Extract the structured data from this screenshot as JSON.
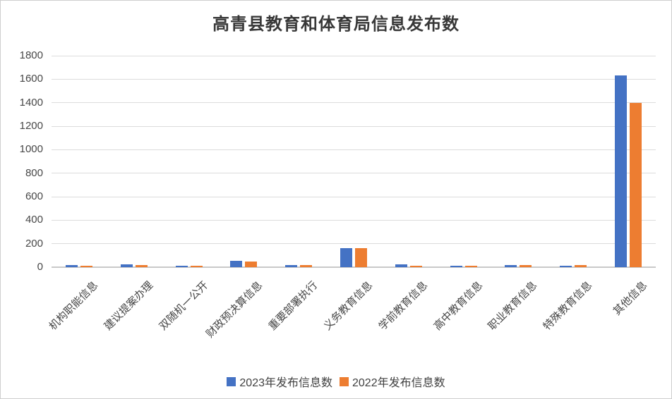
{
  "chart_data": {
    "type": "bar",
    "title": "高青县教育和体育局信息发布数",
    "xlabel": "",
    "ylabel": "",
    "ylim": [
      0,
      1800
    ],
    "ytick_step": 200,
    "grid": true,
    "legend_position": "bottom",
    "categories": [
      "机构职能信息",
      "建议提案办理",
      "双随机一公开",
      "财政预决算信息",
      "重要部署执行",
      "义务教育信息",
      "学前教育信息",
      "高中教育信息",
      "职业教育信息",
      "特殊教育信息",
      "其他信息"
    ],
    "series": [
      {
        "key": "2023",
        "name": "2023年发布信息数",
        "color": "#4472C4",
        "values": [
          20,
          22,
          12,
          52,
          18,
          165,
          22,
          10,
          15,
          12,
          1630
        ]
      },
      {
        "key": "2022",
        "name": "2022年发布信息数",
        "color": "#ED7D31",
        "values": [
          12,
          18,
          8,
          50,
          15,
          165,
          14,
          10,
          15,
          15,
          1400
        ]
      }
    ],
    "colors": {
      "series_2023": "#4472C4",
      "series_2022": "#ED7D31",
      "gridline": "#dcdcdc",
      "axis_line": "#c9c9c9",
      "text": "#404040"
    }
  }
}
